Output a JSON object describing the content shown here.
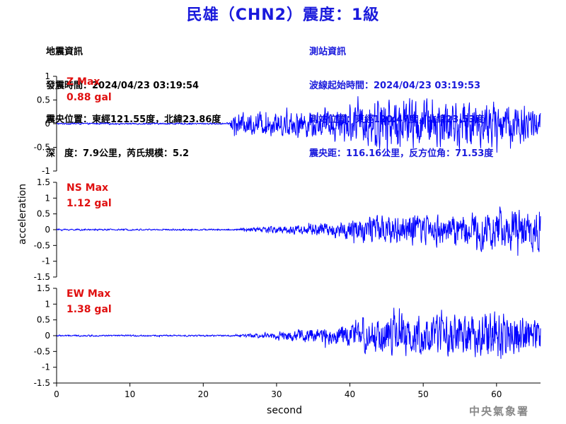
{
  "title": "民雄（CHN2）震度：1級",
  "quake_info": {
    "heading": "地震資訊",
    "origin_time": "發震時間：2024/04/23 03:19:54",
    "epicenter": "震央位置：東經121.55度，北緯23.86度",
    "depth_magnitude": "深　度：7.9公里，芮氏規模：5.2"
  },
  "station_info": {
    "heading": "測站資訊",
    "wave_start": "波線起始時間：2024/04/23 03:19:53",
    "station_location": "測站位置：東經120.47度，北緯23.53度",
    "distance_azimuth": "震央距：116.16公里，反方位角：71.53度"
  },
  "watermark": "中央氣象署",
  "chart_data": {
    "type": "line",
    "xlabel": "second",
    "ylabel": "acceleration",
    "xlim": [
      0,
      66
    ],
    "xticks": [
      0,
      10,
      20,
      30,
      40,
      50,
      60
    ],
    "series_color": "#0000ff",
    "panels": [
      {
        "component": "Z",
        "max_label": "Z Max",
        "max_value_label": "0.88 gal",
        "ylim": [
          -1,
          1
        ],
        "yticks": [
          1,
          0.5,
          0,
          -0.5,
          -1
        ],
        "envelope": [
          {
            "t": 0,
            "a": 0.02
          },
          {
            "t": 23.5,
            "a": 0.02
          },
          {
            "t": 24,
            "a": 0.28
          },
          {
            "t": 30,
            "a": 0.32
          },
          {
            "t": 38,
            "a": 0.38
          },
          {
            "t": 41,
            "a": 0.5
          },
          {
            "t": 45,
            "a": 0.72
          },
          {
            "t": 52,
            "a": 0.62
          },
          {
            "t": 58,
            "a": 0.58
          },
          {
            "t": 64,
            "a": 0.55
          },
          {
            "t": 66,
            "a": 0.35
          }
        ]
      },
      {
        "component": "NS",
        "max_label": "NS Max",
        "max_value_label": "1.12 gal",
        "ylim": [
          -1.5,
          1.5
        ],
        "yticks": [
          1.5,
          1,
          0.5,
          0,
          -0.5,
          -1,
          -1.5
        ],
        "envelope": [
          {
            "t": 0,
            "a": 0.03
          },
          {
            "t": 24,
            "a": 0.03
          },
          {
            "t": 28,
            "a": 0.12
          },
          {
            "t": 33,
            "a": 0.22
          },
          {
            "t": 38,
            "a": 0.3
          },
          {
            "t": 42,
            "a": 0.52
          },
          {
            "t": 48,
            "a": 0.65
          },
          {
            "t": 55,
            "a": 0.62
          },
          {
            "t": 60,
            "a": 0.8
          },
          {
            "t": 66,
            "a": 0.85
          }
        ]
      },
      {
        "component": "EW",
        "max_label": "EW Max",
        "max_value_label": "1.38 gal",
        "ylim": [
          -1.5,
          1.5
        ],
        "yticks": [
          1.5,
          1,
          0.5,
          0,
          -0.5,
          -1,
          -1.5
        ],
        "envelope": [
          {
            "t": 0,
            "a": 0.03
          },
          {
            "t": 24,
            "a": 0.03
          },
          {
            "t": 28,
            "a": 0.1
          },
          {
            "t": 34,
            "a": 0.28
          },
          {
            "t": 40,
            "a": 0.45
          },
          {
            "t": 44,
            "a": 0.75
          },
          {
            "t": 52,
            "a": 0.8
          },
          {
            "t": 58,
            "a": 0.85
          },
          {
            "t": 60,
            "a": 1.05
          },
          {
            "t": 66,
            "a": 0.6
          }
        ]
      }
    ]
  }
}
